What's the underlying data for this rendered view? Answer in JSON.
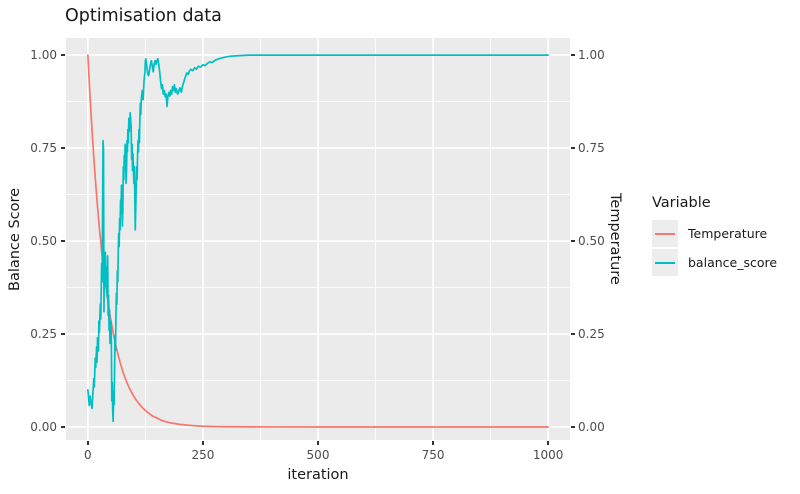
{
  "chart_data": {
    "type": "line",
    "title": "Optimisation data",
    "xlabel": "iteration",
    "ylabel_left": "Balance Score",
    "ylabel_right": "Temperature",
    "x_ticks": {
      "values": [
        0,
        250,
        500,
        750,
        1000
      ],
      "labels": [
        "0",
        "250",
        "500",
        "750",
        "1000"
      ]
    },
    "y_ticks": {
      "values": [
        0,
        0.25,
        0.5,
        0.75,
        1.0
      ],
      "labels": [
        "0.00",
        "0.25",
        "0.50",
        "0.75",
        "1.00"
      ]
    },
    "x_minor": [
      125,
      375,
      625,
      875
    ],
    "y_minor": [
      0.125,
      0.375,
      0.625,
      0.875
    ],
    "xlim": [
      -47.5,
      1047.5
    ],
    "ylim": [
      -0.035,
      1.046
    ],
    "grid": true,
    "colors": {
      "panel_bg": "#EBEBEB",
      "grid_major": "#FFFFFF",
      "grid_minor": "#FFFFFF",
      "axis_text": "#4D4D4D",
      "text": "#1A1A1A",
      "tick_mark": "#333333",
      "legend_key_bg": "#EDEDED"
    },
    "legend": {
      "title": "Variable",
      "position": "right",
      "entries": [
        {
          "name": "Temperature",
          "color": "#F8766D"
        },
        {
          "name": "balance_score",
          "color": "#00BFC4"
        }
      ]
    },
    "series": [
      {
        "name": "Temperature",
        "color": "#F8766D",
        "points": [
          [
            0,
            1.0
          ],
          [
            5,
            0.882
          ],
          [
            10,
            0.779
          ],
          [
            15,
            0.687
          ],
          [
            20,
            0.607
          ],
          [
            25,
            0.535
          ],
          [
            30,
            0.472
          ],
          [
            35,
            0.417
          ],
          [
            40,
            0.368
          ],
          [
            45,
            0.325
          ],
          [
            50,
            0.287
          ],
          [
            55,
            0.253
          ],
          [
            60,
            0.223
          ],
          [
            65,
            0.197
          ],
          [
            70,
            0.174
          ],
          [
            75,
            0.153
          ],
          [
            80,
            0.135
          ],
          [
            85,
            0.119
          ],
          [
            90,
            0.105
          ],
          [
            95,
            0.093
          ],
          [
            100,
            0.082
          ],
          [
            110,
            0.064
          ],
          [
            120,
            0.05
          ],
          [
            130,
            0.039
          ],
          [
            140,
            0.03
          ],
          [
            150,
            0.024
          ],
          [
            160,
            0.018
          ],
          [
            170,
            0.014
          ],
          [
            180,
            0.011
          ],
          [
            190,
            0.009
          ],
          [
            200,
            0.007
          ],
          [
            215,
            0.005
          ],
          [
            230,
            0.0035
          ],
          [
            250,
            0.002
          ],
          [
            275,
            0.0012
          ],
          [
            300,
            0.0007
          ],
          [
            350,
            0.0003
          ],
          [
            400,
            0.0001
          ],
          [
            500,
            0
          ],
          [
            600,
            0
          ],
          [
            700,
            0
          ],
          [
            800,
            0
          ],
          [
            900,
            0
          ],
          [
            1000,
            0
          ]
        ]
      },
      {
        "name": "balance_score",
        "color": "#00BFC4",
        "points": [
          [
            0,
            0.1
          ],
          [
            2,
            0.072
          ],
          [
            3,
            0.058
          ],
          [
            5,
            0.083
          ],
          [
            7,
            0.064
          ],
          [
            9,
            0.05
          ],
          [
            11,
            0.092
          ],
          [
            13,
            0.13
          ],
          [
            14,
            0.108
          ],
          [
            16,
            0.185
          ],
          [
            17,
            0.16
          ],
          [
            19,
            0.215
          ],
          [
            20,
            0.175
          ],
          [
            21,
            0.24
          ],
          [
            23,
            0.205
          ],
          [
            24,
            0.285
          ],
          [
            25,
            0.255
          ],
          [
            27,
            0.33
          ],
          [
            28,
            0.29
          ],
          [
            30,
            0.44
          ],
          [
            31,
            0.39
          ],
          [
            33,
            0.77
          ],
          [
            34,
            0.745
          ],
          [
            35,
            0.31
          ],
          [
            36,
            0.465
          ],
          [
            37,
            0.42
          ],
          [
            38,
            0.47
          ],
          [
            39,
            0.38
          ],
          [
            40,
            0.43
          ],
          [
            42,
            0.35
          ],
          [
            43,
            0.46
          ],
          [
            44,
            0.3
          ],
          [
            45,
            0.355
          ],
          [
            46,
            0.26
          ],
          [
            47,
            0.315
          ],
          [
            48,
            0.225
          ],
          [
            50,
            0.285
          ],
          [
            51,
            0.235
          ],
          [
            52,
            0.07
          ],
          [
            53,
            0.12
          ],
          [
            54,
            0.04
          ],
          [
            55,
            0.015
          ],
          [
            56,
            0.095
          ],
          [
            57,
            0.06
          ],
          [
            58,
            0.15
          ],
          [
            59,
            0.245
          ],
          [
            60,
            0.205
          ],
          [
            61,
            0.3
          ],
          [
            62,
            0.36
          ],
          [
            63,
            0.33
          ],
          [
            64,
            0.42
          ],
          [
            65,
            0.39
          ],
          [
            66,
            0.47
          ],
          [
            67,
            0.52
          ],
          [
            68,
            0.485
          ],
          [
            69,
            0.56
          ],
          [
            70,
            0.53
          ],
          [
            71,
            0.61
          ],
          [
            72,
            0.575
          ],
          [
            73,
            0.65
          ],
          [
            74,
            0.62
          ],
          [
            75,
            0.54
          ],
          [
            76,
            0.585
          ],
          [
            77,
            0.7
          ],
          [
            78,
            0.665
          ],
          [
            79,
            0.73
          ],
          [
            80,
            0.695
          ],
          [
            81,
            0.76
          ],
          [
            82,
            0.72
          ],
          [
            83,
            0.655
          ],
          [
            84,
            0.69
          ],
          [
            85,
            0.77
          ],
          [
            86,
            0.74
          ],
          [
            87,
            0.8
          ],
          [
            88,
            0.765
          ],
          [
            89,
            0.83
          ],
          [
            90,
            0.795
          ],
          [
            92,
            0.845
          ],
          [
            94,
            0.81
          ],
          [
            95,
            0.72
          ],
          [
            96,
            0.76
          ],
          [
            97,
            0.69
          ],
          [
            98,
            0.735
          ],
          [
            100,
            0.655
          ],
          [
            101,
            0.7
          ],
          [
            102,
            0.62
          ],
          [
            103,
            0.53
          ],
          [
            104,
            0.585
          ],
          [
            105,
            0.645
          ],
          [
            106,
            0.7
          ],
          [
            107,
            0.665
          ],
          [
            108,
            0.73
          ],
          [
            109,
            0.77
          ],
          [
            110,
            0.74
          ],
          [
            111,
            0.8
          ],
          [
            112,
            0.765
          ],
          [
            113,
            0.83
          ],
          [
            114,
            0.87
          ],
          [
            115,
            0.84
          ],
          [
            116,
            0.88
          ],
          [
            118,
            0.905
          ],
          [
            120,
            0.88
          ],
          [
            122,
            0.93
          ],
          [
            124,
            0.955
          ],
          [
            125,
            0.985
          ],
          [
            126,
            0.99
          ],
          [
            128,
            0.97
          ],
          [
            130,
            0.95
          ],
          [
            132,
            0.945
          ],
          [
            134,
            0.96
          ],
          [
            136,
            0.975
          ],
          [
            138,
            0.985
          ],
          [
            140,
            0.97
          ],
          [
            142,
            0.955
          ],
          [
            144,
            0.975
          ],
          [
            146,
            0.985
          ],
          [
            148,
            0.975
          ],
          [
            150,
            0.985
          ],
          [
            152,
            0.99
          ],
          [
            154,
            0.975
          ],
          [
            156,
            0.955
          ],
          [
            158,
            0.93
          ],
          [
            160,
            0.91
          ],
          [
            162,
            0.92
          ],
          [
            164,
            0.895
          ],
          [
            166,
            0.905
          ],
          [
            168,
            0.888
          ],
          [
            170,
            0.895
          ],
          [
            172,
            0.862
          ],
          [
            174,
            0.89
          ],
          [
            176,
            0.9
          ],
          [
            178,
            0.89
          ],
          [
            180,
            0.905
          ],
          [
            182,
            0.895
          ],
          [
            184,
            0.915
          ],
          [
            186,
            0.905
          ],
          [
            188,
            0.92
          ],
          [
            190,
            0.9
          ],
          [
            192,
            0.91
          ],
          [
            195,
            0.895
          ],
          [
            198,
            0.905
          ],
          [
            200,
            0.912
          ],
          [
            203,
            0.9
          ],
          [
            206,
            0.918
          ],
          [
            209,
            0.93
          ],
          [
            212,
            0.942
          ],
          [
            215,
            0.952
          ],
          [
            218,
            0.948
          ],
          [
            221,
            0.958
          ],
          [
            224,
            0.962
          ],
          [
            228,
            0.958
          ],
          [
            232,
            0.966
          ],
          [
            236,
            0.962
          ],
          [
            240,
            0.97
          ],
          [
            245,
            0.968
          ],
          [
            250,
            0.974
          ],
          [
            255,
            0.972
          ],
          [
            260,
            0.978
          ],
          [
            265,
            0.982
          ],
          [
            270,
            0.98
          ],
          [
            275,
            0.985
          ],
          [
            280,
            0.988
          ],
          [
            285,
            0.99
          ],
          [
            290,
            0.992
          ],
          [
            300,
            0.995
          ],
          [
            310,
            0.997
          ],
          [
            320,
            0.998
          ],
          [
            335,
            0.999
          ],
          [
            350,
            1.0
          ],
          [
            400,
            1.0
          ],
          [
            500,
            1.0
          ],
          [
            600,
            1.0
          ],
          [
            700,
            1.0
          ],
          [
            800,
            1.0
          ],
          [
            900,
            1.0
          ],
          [
            1000,
            1.0
          ]
        ]
      }
    ]
  }
}
